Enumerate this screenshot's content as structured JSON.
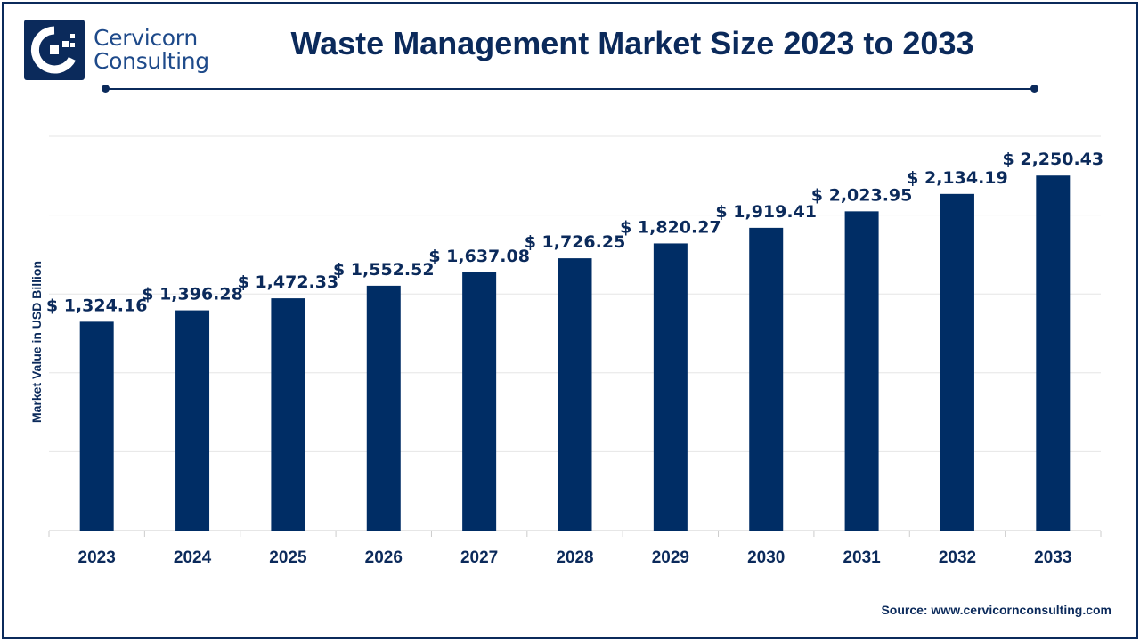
{
  "brand": {
    "name_line1": "Cervicorn",
    "name_line2": "Consulting"
  },
  "source": "Source: www.cervicornconsulting.com",
  "colors": {
    "bar": "#002d65",
    "text": "#0b2a5b",
    "grid": "#e6e6e6",
    "axis": "#cccccc"
  },
  "chart_data": {
    "type": "bar",
    "title": "Waste Management Market Size 2023 to 2033",
    "xlabel": "",
    "ylabel": "Market Value in USD Billion",
    "ylim": [
      0,
      2500
    ],
    "grid": true,
    "value_prefix": "$ ",
    "categories": [
      "2023",
      "2024",
      "2025",
      "2026",
      "2027",
      "2028",
      "2029",
      "2030",
      "2031",
      "2032",
      "2033"
    ],
    "values": [
      1324.16,
      1396.28,
      1472.33,
      1552.52,
      1637.08,
      1726.25,
      1820.27,
      1919.41,
      2023.95,
      2134.19,
      2250.43
    ],
    "data_labels": [
      "$ 1,324.16",
      "$ 1,396.28",
      "$ 1,472.33",
      "$ 1,552.52",
      "$ 1,637.08",
      "$ 1,726.25",
      "$ 1,820.27",
      "$ 1,919.41",
      "$ 2,023.95",
      "$ 2,134.19",
      "$ 2,250.43"
    ]
  }
}
